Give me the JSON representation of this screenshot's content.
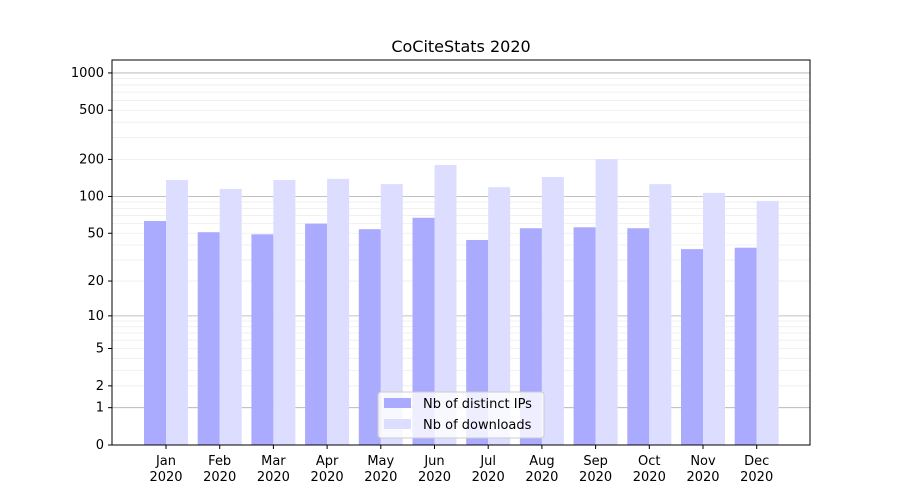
{
  "chart_data": {
    "type": "bar",
    "title": "CoCiteStats 2020",
    "xlabel": "",
    "ylabel": "",
    "yscale": "symlog (log10(1+y))",
    "ylim": [
      0,
      1300
    ],
    "yticks": [
      0,
      1,
      2,
      5,
      10,
      20,
      50,
      100,
      200,
      500,
      1000
    ],
    "categories": [
      "Jan\n2020",
      "Feb\n2020",
      "Mar\n2020",
      "Apr\n2020",
      "May\n2020",
      "Jun\n2020",
      "Jul\n2020",
      "Aug\n2020",
      "Sep\n2020",
      "Oct\n2020",
      "Nov\n2020",
      "Dec\n2020"
    ],
    "series": [
      {
        "name": "Nb of distinct IPs",
        "color": "#aaaaff",
        "values": [
          63,
          51,
          49,
          60,
          54,
          67,
          44,
          55,
          56,
          55,
          37,
          38
        ]
      },
      {
        "name": "Nb of downloads",
        "color": "#ddddff",
        "values": [
          136,
          115,
          136,
          139,
          126,
          180,
          119,
          144,
          201,
          126,
          107,
          92
        ]
      }
    ],
    "legend": "lower-center",
    "grid": true
  }
}
